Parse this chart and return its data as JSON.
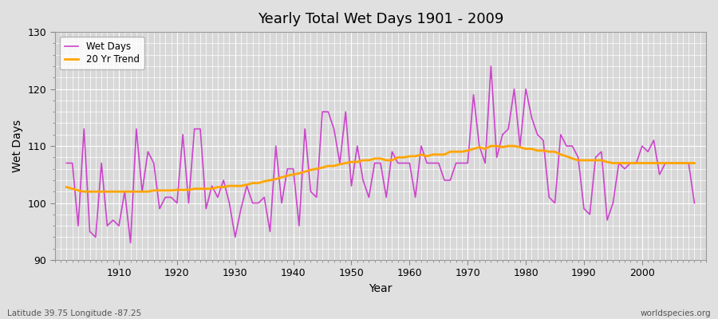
{
  "title": "Yearly Total Wet Days 1901 - 2009",
  "xlabel": "Year",
  "ylabel": "Wet Days",
  "lat_lon_label": "Latitude 39.75 Longitude -87.25",
  "watermark": "worldspecies.org",
  "ylim": [
    90,
    130
  ],
  "xlim_min": 1901,
  "xlim_max": 2009,
  "yticks": [
    90,
    100,
    110,
    120,
    130
  ],
  "xticks": [
    1910,
    1920,
    1930,
    1940,
    1950,
    1960,
    1970,
    1980,
    1990,
    2000
  ],
  "wet_days_color": "#cc44cc",
  "trend_color": "#ffa500",
  "bg_color": "#e0e0e0",
  "axes_bg_color": "#d8d8d8",
  "grid_color": "#ffffff",
  "wet_days": [
    107,
    107,
    96,
    113,
    95,
    94,
    107,
    96,
    97,
    96,
    102,
    93,
    113,
    102,
    109,
    107,
    99,
    101,
    101,
    100,
    112,
    100,
    113,
    113,
    99,
    103,
    101,
    104,
    100,
    94,
    99,
    103,
    100,
    100,
    101,
    95,
    110,
    100,
    106,
    106,
    96,
    113,
    102,
    101,
    116,
    116,
    113,
    107,
    116,
    103,
    110,
    104,
    101,
    107,
    107,
    101,
    109,
    107,
    107,
    107,
    101,
    110,
    107,
    107,
    107,
    104,
    104,
    107,
    107,
    107,
    119,
    110,
    107,
    124,
    108,
    112,
    113,
    120,
    110,
    120,
    115,
    112,
    111,
    101,
    100,
    112,
    110,
    110,
    108,
    99,
    98,
    108,
    109,
    97,
    100,
    107,
    106,
    107,
    107,
    110,
    109,
    111,
    105,
    107,
    107,
    107,
    107,
    107,
    100
  ],
  "trend": [
    102.8,
    102.5,
    102.2,
    102.0,
    102.0,
    102.0,
    102.0,
    102.0,
    102.0,
    102.0,
    102.0,
    102.0,
    102.0,
    102.0,
    102.0,
    102.2,
    102.2,
    102.2,
    102.2,
    102.3,
    102.3,
    102.3,
    102.5,
    102.5,
    102.5,
    102.5,
    102.8,
    102.8,
    103.0,
    103.0,
    103.0,
    103.2,
    103.5,
    103.5,
    103.8,
    104.0,
    104.2,
    104.5,
    104.8,
    105.0,
    105.2,
    105.5,
    105.8,
    106.0,
    106.2,
    106.5,
    106.5,
    106.8,
    107.0,
    107.2,
    107.2,
    107.5,
    107.5,
    107.8,
    107.8,
    107.5,
    107.5,
    108.0,
    108.0,
    108.2,
    108.2,
    108.5,
    108.2,
    108.5,
    108.5,
    108.5,
    109.0,
    109.0,
    109.0,
    109.2,
    109.5,
    109.8,
    109.5,
    110.0,
    110.0,
    109.8,
    110.0,
    110.0,
    109.8,
    109.5,
    109.5,
    109.2,
    109.2,
    109.0,
    109.0,
    108.5,
    108.2,
    107.8,
    107.5,
    107.5,
    107.5,
    107.5,
    107.5,
    107.2,
    107.0,
    107.0,
    107.0,
    107.0,
    107.0,
    107.0,
    107.0,
    107.0,
    107.0,
    107.0,
    107.0,
    107.0,
    107.0,
    107.0,
    107.0
  ]
}
